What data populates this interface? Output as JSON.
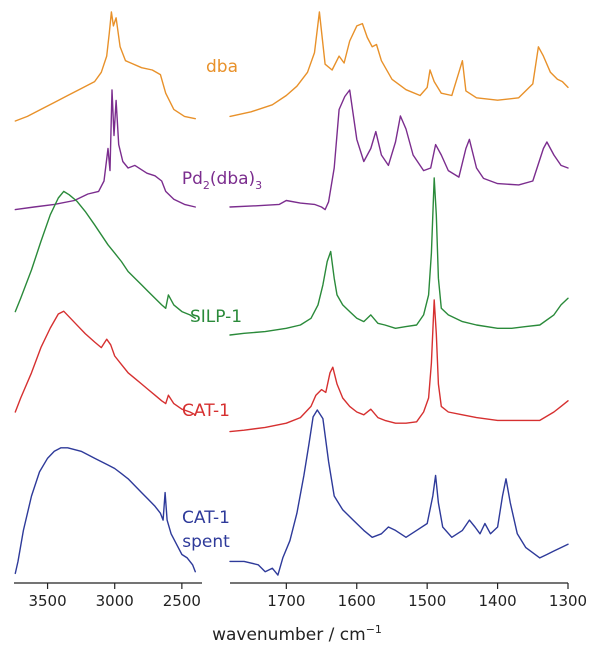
{
  "chart_data": {
    "type": "line",
    "xlabel": "wavenumber / cm",
    "xlabel_superscript": "−1",
    "y_axis_shown": false,
    "grid": false,
    "legend": "labels placed next to each trace",
    "panels": [
      {
        "name": "left",
        "xlim": [
          3750,
          2350
        ],
        "xticks": [
          3500,
          3000,
          2500
        ],
        "xtick_labels": [
          "3500",
          "3000",
          "2500"
        ]
      },
      {
        "name": "right",
        "xlim": [
          1780,
          1300
        ],
        "xticks": [
          1700,
          1600,
          1500,
          1400,
          1300
        ],
        "xtick_labels": [
          "1700",
          "1600",
          "1500",
          "1400",
          "1300"
        ]
      }
    ],
    "series": [
      {
        "name": "dba",
        "label_lines": [
          "dba"
        ],
        "color": "#e8912a",
        "left_x": [
          3740,
          3650,
          3550,
          3450,
          3350,
          3250,
          3150,
          3100,
          3060,
          3040,
          3025,
          3010,
          2990,
          2960,
          2920,
          2880,
          2800,
          2720,
          2660,
          2620,
          2560,
          2480,
          2400
        ],
        "left_y": [
          0.06,
          0.1,
          0.16,
          0.22,
          0.28,
          0.34,
          0.4,
          0.48,
          0.62,
          0.82,
          1.0,
          0.88,
          0.95,
          0.7,
          0.58,
          0.56,
          0.52,
          0.5,
          0.46,
          0.3,
          0.16,
          0.1,
          0.08
        ],
        "right_x": [
          1780,
          1750,
          1720,
          1700,
          1685,
          1670,
          1660,
          1653,
          1645,
          1635,
          1625,
          1618,
          1610,
          1600,
          1592,
          1585,
          1578,
          1572,
          1565,
          1550,
          1530,
          1510,
          1500,
          1496,
          1490,
          1480,
          1465,
          1455,
          1450,
          1445,
          1430,
          1400,
          1370,
          1350,
          1342,
          1335,
          1325,
          1315,
          1308,
          1300
        ],
        "right_y": [
          0.1,
          0.14,
          0.2,
          0.28,
          0.36,
          0.48,
          0.65,
          1.0,
          0.55,
          0.5,
          0.62,
          0.56,
          0.75,
          0.88,
          0.9,
          0.78,
          0.7,
          0.72,
          0.58,
          0.42,
          0.33,
          0.28,
          0.35,
          0.5,
          0.4,
          0.3,
          0.28,
          0.48,
          0.58,
          0.32,
          0.26,
          0.24,
          0.26,
          0.38,
          0.7,
          0.62,
          0.48,
          0.42,
          0.4,
          0.35
        ]
      },
      {
        "name": "Pd2(dba)3",
        "label_lines": [
          "Pd2(dba)3"
        ],
        "color": "#7b2d8e",
        "left_x": [
          3740,
          3600,
          3450,
          3300,
          3200,
          3120,
          3080,
          3050,
          3035,
          3020,
          3005,
          2990,
          2970,
          2940,
          2900,
          2850,
          2760,
          2700,
          2650,
          2620,
          2560,
          2480,
          2400
        ],
        "left_y": [
          0.08,
          0.1,
          0.12,
          0.15,
          0.2,
          0.22,
          0.3,
          0.55,
          0.38,
          1.0,
          0.65,
          0.92,
          0.58,
          0.45,
          0.4,
          0.42,
          0.36,
          0.34,
          0.3,
          0.22,
          0.16,
          0.12,
          0.1
        ],
        "right_x": [
          1780,
          1740,
          1710,
          1700,
          1680,
          1660,
          1650,
          1645,
          1640,
          1632,
          1625,
          1617,
          1610,
          1600,
          1590,
          1580,
          1573,
          1565,
          1555,
          1545,
          1538,
          1530,
          1520,
          1505,
          1495,
          1488,
          1480,
          1470,
          1455,
          1445,
          1440,
          1430,
          1420,
          1400,
          1370,
          1350,
          1335,
          1330,
          1320,
          1310,
          1300
        ],
        "right_y": [
          0.1,
          0.11,
          0.12,
          0.15,
          0.13,
          0.12,
          0.1,
          0.08,
          0.14,
          0.4,
          0.85,
          0.95,
          1.0,
          0.62,
          0.45,
          0.55,
          0.68,
          0.5,
          0.42,
          0.6,
          0.8,
          0.7,
          0.5,
          0.38,
          0.4,
          0.58,
          0.5,
          0.38,
          0.33,
          0.55,
          0.62,
          0.4,
          0.32,
          0.28,
          0.27,
          0.3,
          0.55,
          0.6,
          0.5,
          0.42,
          0.4
        ]
      },
      {
        "name": "SILP-1",
        "label_lines": [
          "SILP-1"
        ],
        "color": "#2a8a3a",
        "left_x": [
          3740,
          3700,
          3620,
          3550,
          3480,
          3420,
          3380,
          3340,
          3280,
          3220,
          3150,
          3100,
          3050,
          3000,
          2950,
          2900,
          2850,
          2800,
          2750,
          2700,
          2650,
          2620,
          2600,
          2560,
          2500,
          2440,
          2400
        ],
        "left_y": [
          0.2,
          0.28,
          0.45,
          0.62,
          0.78,
          0.88,
          0.92,
          0.9,
          0.86,
          0.8,
          0.72,
          0.66,
          0.6,
          0.55,
          0.5,
          0.44,
          0.4,
          0.36,
          0.32,
          0.28,
          0.24,
          0.22,
          0.3,
          0.24,
          0.2,
          0.18,
          0.16
        ],
        "right_x": [
          1780,
          1760,
          1730,
          1700,
          1680,
          1665,
          1655,
          1648,
          1642,
          1637,
          1632,
          1628,
          1620,
          1610,
          1600,
          1590,
          1580,
          1570,
          1560,
          1545,
          1530,
          1515,
          1505,
          1498,
          1494,
          1490,
          1487,
          1484,
          1480,
          1470,
          1450,
          1430,
          1400,
          1380,
          1360,
          1340,
          1320,
          1310,
          1300
        ],
        "right_y": [
          0.06,
          0.07,
          0.08,
          0.1,
          0.12,
          0.16,
          0.24,
          0.36,
          0.5,
          0.56,
          0.4,
          0.3,
          0.24,
          0.2,
          0.16,
          0.14,
          0.18,
          0.13,
          0.12,
          0.1,
          0.11,
          0.12,
          0.18,
          0.3,
          0.55,
          1.0,
          0.78,
          0.4,
          0.22,
          0.18,
          0.14,
          0.12,
          0.1,
          0.1,
          0.11,
          0.12,
          0.18,
          0.24,
          0.28
        ]
      },
      {
        "name": "CAT-1",
        "label_lines": [
          "CAT-1"
        ],
        "color": "#d63030",
        "left_x": [
          3740,
          3700,
          3620,
          3550,
          3480,
          3420,
          3380,
          3340,
          3280,
          3220,
          3150,
          3100,
          3060,
          3030,
          3000,
          2950,
          2900,
          2850,
          2800,
          2750,
          2700,
          2650,
          2620,
          2600,
          2560,
          2500,
          2440,
          2400
        ],
        "left_y": [
          0.2,
          0.3,
          0.48,
          0.66,
          0.8,
          0.9,
          0.92,
          0.88,
          0.82,
          0.76,
          0.7,
          0.66,
          0.72,
          0.68,
          0.6,
          0.54,
          0.48,
          0.44,
          0.4,
          0.36,
          0.32,
          0.28,
          0.26,
          0.32,
          0.26,
          0.22,
          0.2,
          0.18
        ],
        "right_x": [
          1780,
          1760,
          1730,
          1700,
          1680,
          1665,
          1658,
          1650,
          1644,
          1638,
          1634,
          1628,
          1620,
          1610,
          1600,
          1590,
          1580,
          1570,
          1560,
          1545,
          1530,
          1515,
          1505,
          1498,
          1494,
          1490,
          1487,
          1484,
          1480,
          1470,
          1450,
          1430,
          1400,
          1380,
          1360,
          1340,
          1320,
          1310,
          1300
        ],
        "right_y": [
          0.06,
          0.07,
          0.09,
          0.12,
          0.16,
          0.24,
          0.32,
          0.36,
          0.34,
          0.48,
          0.52,
          0.4,
          0.3,
          0.24,
          0.2,
          0.18,
          0.22,
          0.16,
          0.14,
          0.12,
          0.12,
          0.13,
          0.2,
          0.3,
          0.55,
          1.0,
          0.76,
          0.4,
          0.24,
          0.2,
          0.18,
          0.16,
          0.14,
          0.14,
          0.14,
          0.14,
          0.2,
          0.24,
          0.28
        ]
      },
      {
        "name": "CAT-1 spent",
        "label_lines": [
          "CAT-1",
          "spent"
        ],
        "color": "#2e3a9a",
        "left_x": [
          3740,
          3720,
          3680,
          3620,
          3560,
          3500,
          3450,
          3400,
          3350,
          3300,
          3250,
          3200,
          3150,
          3100,
          3050,
          3000,
          2950,
          2900,
          2850,
          2800,
          2750,
          2700,
          2660,
          2640,
          2625,
          2610,
          2580,
          2540,
          2500,
          2460,
          2420,
          2400
        ],
        "left_y": [
          0.05,
          0.12,
          0.3,
          0.5,
          0.64,
          0.72,
          0.76,
          0.78,
          0.78,
          0.77,
          0.76,
          0.74,
          0.72,
          0.7,
          0.68,
          0.66,
          0.63,
          0.6,
          0.56,
          0.52,
          0.48,
          0.44,
          0.4,
          0.36,
          0.52,
          0.36,
          0.28,
          0.22,
          0.16,
          0.14,
          0.1,
          0.06
        ],
        "right_x": [
          1780,
          1760,
          1740,
          1730,
          1720,
          1712,
          1705,
          1695,
          1685,
          1675,
          1668,
          1662,
          1656,
          1648,
          1640,
          1632,
          1620,
          1605,
          1590,
          1578,
          1565,
          1555,
          1545,
          1530,
          1515,
          1500,
          1492,
          1488,
          1484,
          1478,
          1465,
          1450,
          1440,
          1432,
          1425,
          1418,
          1410,
          1400,
          1393,
          1388,
          1382,
          1372,
          1360,
          1340,
          1330,
          1320,
          1310,
          1300
        ],
        "right_y": [
          0.12,
          0.12,
          0.1,
          0.06,
          0.08,
          0.04,
          0.14,
          0.24,
          0.4,
          0.62,
          0.8,
          0.96,
          1.0,
          0.95,
          0.7,
          0.5,
          0.42,
          0.36,
          0.3,
          0.26,
          0.28,
          0.32,
          0.3,
          0.26,
          0.3,
          0.34,
          0.5,
          0.62,
          0.46,
          0.32,
          0.26,
          0.3,
          0.36,
          0.32,
          0.28,
          0.34,
          0.28,
          0.32,
          0.5,
          0.6,
          0.46,
          0.28,
          0.2,
          0.14,
          0.16,
          0.18,
          0.2,
          0.22
        ]
      }
    ]
  }
}
